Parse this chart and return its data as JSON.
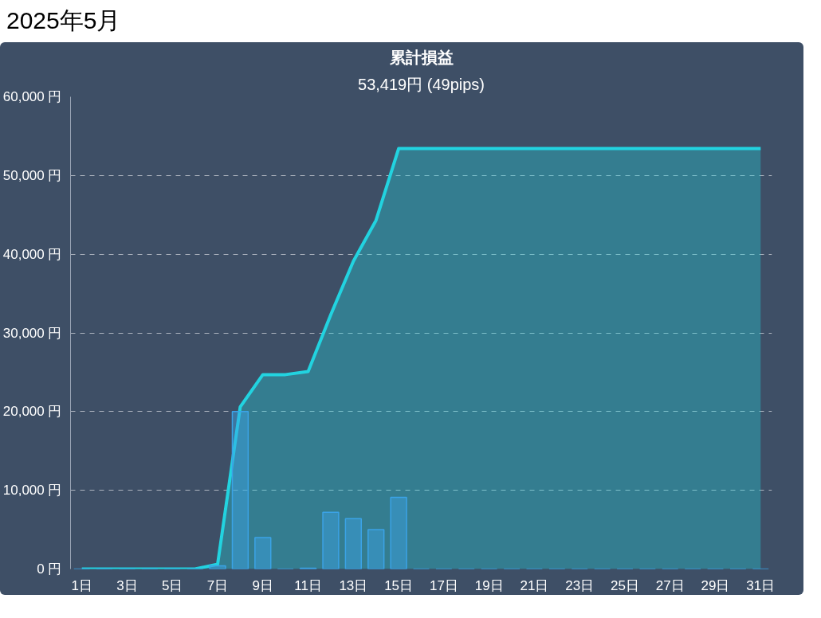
{
  "chart_data": {
    "type": "bar",
    "title": "累計損益",
    "subtitle": "53,419円 (49pips)",
    "annotations": [
      "2025年5月"
    ],
    "x": [
      1,
      2,
      3,
      4,
      5,
      6,
      7,
      8,
      9,
      10,
      11,
      12,
      13,
      14,
      15,
      16,
      17,
      18,
      19,
      20,
      21,
      22,
      23,
      24,
      25,
      26,
      27,
      28,
      29,
      30,
      31
    ],
    "series": [
      {
        "type": "area",
        "color": "#22d3e0",
        "values": [
          0,
          0,
          0,
          0,
          0,
          0,
          600,
          20600,
          24700,
          24700,
          25100,
          32300,
          39100,
          44300,
          53419,
          53419,
          53419,
          53419,
          53419,
          53419,
          53419,
          53419,
          53419,
          53419,
          53419,
          53419,
          53419,
          53419,
          53419,
          53419,
          53419
        ]
      },
      {
        "color": "#3ba3e6",
        "values": [
          0,
          0,
          0,
          0,
          0,
          0,
          400,
          20000,
          4000,
          0,
          100,
          7200,
          6400,
          5000,
          9100,
          0,
          0,
          0,
          0,
          0,
          0,
          0,
          0,
          0,
          0,
          0,
          0,
          0,
          0,
          0,
          0
        ]
      }
    ],
    "xlim": [
      0.5,
      31.5
    ],
    "xticks": [
      {
        "value": 1,
        "label": "1日"
      },
      {
        "value": 3,
        "label": "3日"
      },
      {
        "value": 5,
        "label": "5日"
      },
      {
        "value": 7,
        "label": "7日"
      },
      {
        "value": 9,
        "label": "9日"
      },
      {
        "value": 11,
        "label": "11日"
      },
      {
        "value": 13,
        "label": "13日"
      },
      {
        "value": 15,
        "label": "15日"
      },
      {
        "value": 17,
        "label": "17日"
      },
      {
        "value": 19,
        "label": "19日"
      },
      {
        "value": 21,
        "label": "21日"
      },
      {
        "value": 23,
        "label": "23日"
      },
      {
        "value": 25,
        "label": "25日"
      },
      {
        "value": 27,
        "label": "27日"
      },
      {
        "value": 29,
        "label": "29日"
      },
      {
        "value": 31,
        "label": "31日"
      }
    ],
    "ylim": [
      0,
      60000
    ],
    "yticks": [
      {
        "value": 0,
        "label": "0 円"
      },
      {
        "value": 10000,
        "label": "10,000 円"
      },
      {
        "value": 20000,
        "label": "20,000 円"
      },
      {
        "value": 30000,
        "label": "30,000 円"
      },
      {
        "value": 40000,
        "label": "40,000 円"
      },
      {
        "value": 50000,
        "label": "50,000 円"
      },
      {
        "value": 60000,
        "label": "60,000 円"
      }
    ],
    "grid": "y",
    "line_style": "solid"
  }
}
